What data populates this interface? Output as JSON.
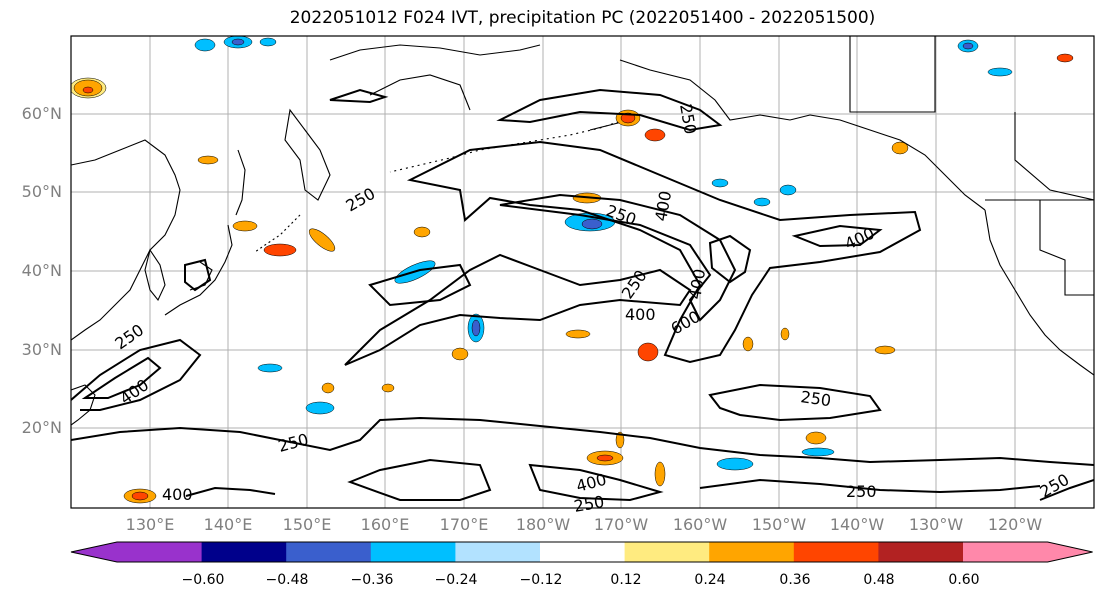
{
  "title": "2022051012 F024 IVT, precipitation PC (2022051400 - 2022051500)",
  "lat_labels": [
    "60°N",
    "50°N",
    "40°N",
    "30°N",
    "20°N"
  ],
  "lon_labels": [
    "130°E",
    "140°E",
    "150°E",
    "160°E",
    "170°E",
    "180°W",
    "170°W",
    "160°W",
    "150°W",
    "140°W",
    "130°W",
    "120°W"
  ],
  "contour_labels": [
    "250",
    "250",
    "250",
    "250",
    "400",
    "400",
    "400",
    "400",
    "250",
    "400",
    "600",
    "250",
    "250",
    "400",
    "400",
    "250",
    "250",
    "250"
  ],
  "colorbar": {
    "tick_labels": [
      "−0.60",
      "−0.48",
      "−0.36",
      "−0.24",
      "−0.12",
      "0.12",
      "0.24",
      "0.36",
      "0.48",
      "0.60"
    ],
    "colors": [
      "#9932cc",
      "#00008b",
      "#3a5fcd",
      "#00bfff",
      "#b2e2ff",
      "#ffffff",
      "#ffeb80",
      "#ffa500",
      "#ff4500",
      "#b22222",
      "#ff88aa"
    ]
  }
}
